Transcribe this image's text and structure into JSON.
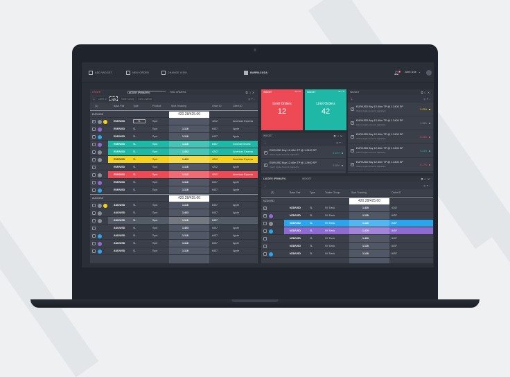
{
  "topbar": {
    "add_widget": "ADD WIDGET",
    "new_order": "NEW ORDER",
    "change_view": "CHANGE VIEW",
    "brand": "BARRACUDA",
    "user": "John Doe",
    "notifications": "3"
  },
  "colors": {
    "teal": "#1fb8a6",
    "yellow": "#f7d21a",
    "red": "#ee4a56",
    "blue": "#2ba6ee",
    "purple": "#8e6bd0",
    "gray": "#8a8f98"
  },
  "left_panel": {
    "tabs": [
      "ORDER",
      "LADDER (PRIMARY)",
      "FIND ORDERS"
    ],
    "filters": [
      "Client ID",
      "Cpty",
      "Trader Group",
      "Exec Channel"
    ],
    "columns": [
      "(1)",
      "Base Pair",
      "Type",
      "Product",
      "Spot Tracking",
      "Order ID",
      "Client ID"
    ],
    "groups": [
      {
        "name": "EUR/USD",
        "spot": "420.28/425.60",
        "rows": [
          {
            "checked": true,
            "icons": [
              "gray",
              "yellow"
            ],
            "pair": "EUR/USD",
            "type": "SL",
            "product": "Spot",
            "spot": "",
            "order": "4242",
            "client": "American Express",
            "hl": ""
          },
          {
            "icons": [
              "purple"
            ],
            "pair": "EUR/USD",
            "type": "SL",
            "product": "Spot",
            "spot": "1.118",
            "order": "8457",
            "client": "Apple",
            "hl": ""
          },
          {
            "icons": [
              "blue"
            ],
            "pair": "EUR/USD",
            "type": "SL",
            "product": "Spot",
            "spot": "1.118",
            "order": "8457",
            "client": "Apple",
            "hl": ""
          },
          {
            "icons": [
              "purple"
            ],
            "pair": "EUR/USD",
            "type": "SL",
            "product": "Spot",
            "spot": "1.118",
            "order": "8457",
            "client": "General Electric",
            "hl": "teal"
          },
          {
            "icons": [
              "gray"
            ],
            "pair": "EUR/USD",
            "type": "SL",
            "product": "Spot",
            "spot": "1.423",
            "order": "4242",
            "client": "American Express",
            "hl": "teal"
          },
          {
            "icons": [
              "gray"
            ],
            "pair": "EUR/USD",
            "type": "SL",
            "product": "Spot",
            "spot": "1.423",
            "order": "4242",
            "client": "American Express",
            "hl": "yellow"
          },
          {
            "icons": [],
            "pair": "EUR/USD",
            "type": "SL",
            "product": "Spot",
            "spot": "1.118",
            "order": "4242",
            "client": "Apple",
            "hl": ""
          },
          {
            "icons": [
              "gray"
            ],
            "pair": "EUR/USD",
            "type": "SL",
            "product": "Spot",
            "spot": "1.118",
            "order": "4242",
            "client": "American Express",
            "hl": "red"
          },
          {
            "icons": [
              "purple"
            ],
            "pair": "EUR/USD",
            "type": "SL",
            "product": "Spot",
            "spot": "1.118",
            "order": "8457",
            "client": "Apple",
            "hl": ""
          },
          {
            "icons": [
              "blue"
            ],
            "pair": "EUR/USD",
            "type": "SL",
            "product": "Spot",
            "spot": "1.118",
            "order": "8457",
            "client": "Apple",
            "hl": ""
          }
        ]
      },
      {
        "name": "AUD/USD",
        "spot": "420.28/425.60",
        "rows": [
          {
            "icons": [
              "gray",
              "yellow"
            ],
            "pair": "AUD/USD",
            "type": "SL",
            "product": "Spot",
            "spot": "1.118",
            "order": "8457",
            "client": "Apple",
            "hl": ""
          },
          {
            "icons": [
              "gray"
            ],
            "pair": "AUD/USD",
            "type": "SL",
            "product": "Spot",
            "spot": "1.423",
            "order": "8457",
            "client": "Apple",
            "hl": ""
          },
          {
            "icons": [
              "gray"
            ],
            "pair": "AUD/USD",
            "type": "SL",
            "product": "Spot",
            "spot": "1.118",
            "order": "8457",
            "client": "",
            "hl": "sel"
          },
          {
            "icons": [],
            "pair": "AUD/USD",
            "type": "SL",
            "product": "Spot",
            "spot": "1.423",
            "order": "8457",
            "client": "Apple",
            "hl": ""
          },
          {
            "icons": [
              "blue"
            ],
            "pair": "AUD/USD",
            "type": "SL",
            "product": "Spot",
            "spot": "1.118",
            "order": "8457",
            "client": "Apple",
            "hl": ""
          },
          {
            "icons": [
              "purple"
            ],
            "pair": "AUD/USD",
            "type": "SL",
            "product": "Spot",
            "spot": "1.118",
            "order": "8457",
            "client": "Apple",
            "hl": ""
          },
          {
            "icons": [
              "blue"
            ],
            "pair": "AUD/USD",
            "type": "SL",
            "product": "Spot",
            "spot": "1.118",
            "order": "8457",
            "client": "Apple",
            "hl": ""
          }
        ]
      }
    ]
  },
  "tiles": [
    {
      "header": "WIDGET",
      "label": "Limit Orders",
      "value": "12",
      "color": "#ee4a56"
    },
    {
      "header": "WIDGET",
      "label": "Limit Orders",
      "value": "42",
      "color": "#1fb8a6"
    }
  ],
  "list_widgets": [
    {
      "header": "WIDGET",
      "items": [
        {
          "title": "EUR/USD Buy 12.40m TP @ 1.2400 SP",
          "sub": "Client: Apple   Account: AppleAcc",
          "pct": "5.43%",
          "color": "#1fb8a6"
        },
        {
          "title": "EUR/USD Buy 12.40m TP @ 1.2400 SP",
          "sub": "Client: Apple   Account: AppleAcc",
          "pct": "0.38%",
          "color": "#8a8f98"
        }
      ]
    },
    {
      "header": "WIDGET",
      "items": [
        {
          "title": "EUR/USD Buy 12.40m TP @ 1.2400 SP",
          "sub": "Client: Apple   Account: AppleAcc",
          "pct": "5.43%",
          "color": "#f7d21a"
        },
        {
          "title": "EUR/USD Buy 12.40m TP @ 1.2400 SP",
          "sub": "Client: Apple   Account: AppleAcc",
          "pct": "0.38%",
          "color": "#8a8f98"
        },
        {
          "title": "EUR/USD Buy 12.40m TP @ 1.2400 SP",
          "sub": "Client: Apple   Account: AppleAcc",
          "pct": "6.43%",
          "color": "#ee4a56"
        },
        {
          "title": "EUR/USD Buy 12.40m TP @ 1.2400 SP",
          "sub": "Client: Apple   Account: AppleAcc",
          "pct": "5.34%",
          "color": "#1fb8a6"
        },
        {
          "title": "EUR/USD Buy 12.40m TP @ 1.2400 SP",
          "sub": "Client: Apple   Account: AppleAcc",
          "pct": "6.17%",
          "color": "#ee4a56"
        }
      ]
    }
  ],
  "right_panel": {
    "tabs": [
      "LADDER (PRIMARY)",
      "WIDGET"
    ],
    "columns": [
      "(3)",
      "Base Pair",
      "Type",
      "Trader Group",
      "Spot Tracking",
      "Order ID"
    ],
    "group": {
      "name": "NZD/USD",
      "spot": "420.28/425.60",
      "rows": [
        {
          "checked": true,
          "icons": [],
          "pair": "NZD/USD",
          "type": "SL",
          "group": "NY Desk",
          "spot": "1.420",
          "order": "4242",
          "hl": ""
        },
        {
          "checked": true,
          "icons": [
            "purple"
          ],
          "pair": "NZD/USD",
          "type": "SL",
          "group": "NY Desk",
          "spot": "1.118",
          "order": "8457",
          "hl": ""
        },
        {
          "icons": [
            "gray"
          ],
          "pair": "NZD/USD",
          "type": "SL",
          "group": "NY Desk",
          "spot": "1.118",
          "order": "8457",
          "hl": "blue"
        },
        {
          "icons": [
            "blue"
          ],
          "pair": "NZD/USD",
          "type": "SL",
          "group": "NY Desk",
          "spot": "1.420",
          "order": "8457",
          "hl": "purple"
        },
        {
          "icons": [],
          "pair": "NZD/USD",
          "type": "SL",
          "group": "NY Desk",
          "spot": "1.420",
          "order": "8457",
          "hl": ""
        },
        {
          "icons": [],
          "pair": "NZD/USD",
          "type": "SL",
          "group": "NY Desk",
          "spot": "1.118",
          "order": "8457",
          "hl": ""
        },
        {
          "icons": [
            "blue"
          ],
          "pair": "NZD/USD",
          "type": "SL",
          "group": "NY Desk",
          "spot": "1.118",
          "order": "8457",
          "hl": ""
        }
      ]
    }
  }
}
